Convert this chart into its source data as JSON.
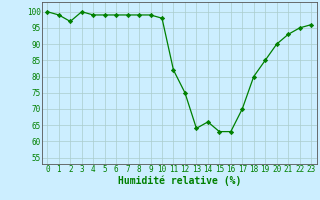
{
  "x": [
    0,
    1,
    2,
    3,
    4,
    5,
    6,
    7,
    8,
    9,
    10,
    11,
    12,
    13,
    14,
    15,
    16,
    17,
    18,
    19,
    20,
    21,
    22,
    23
  ],
  "y": [
    100,
    99,
    97,
    100,
    99,
    99,
    99,
    99,
    99,
    99,
    98,
    82,
    75,
    64,
    66,
    63,
    63,
    70,
    80,
    85,
    90,
    93,
    95,
    96
  ],
  "xlabel": "Humidité relative (%)",
  "xlim": [
    -0.5,
    23.5
  ],
  "ylim": [
    53,
    103
  ],
  "yticks": [
    55,
    60,
    65,
    70,
    75,
    80,
    85,
    90,
    95,
    100
  ],
  "xticks": [
    0,
    1,
    2,
    3,
    4,
    5,
    6,
    7,
    8,
    9,
    10,
    11,
    12,
    13,
    14,
    15,
    16,
    17,
    18,
    19,
    20,
    21,
    22,
    23
  ],
  "line_color": "#008000",
  "marker": "D",
  "marker_size": 2.2,
  "bg_color": "#cceeff",
  "grid_color": "#aacccc",
  "tick_fontsize": 5.5,
  "xlabel_fontsize": 7.0,
  "xlabel_color": "#008000",
  "tick_color": "#008000",
  "spine_color": "#555555"
}
